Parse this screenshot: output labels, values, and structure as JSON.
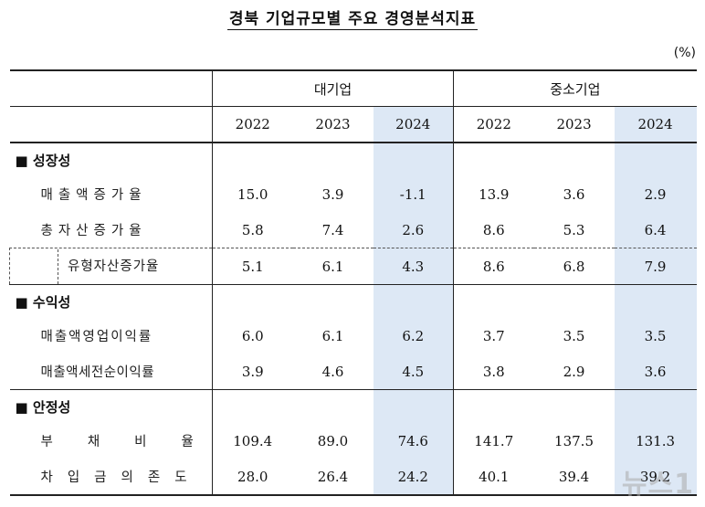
{
  "title": "경북 기업규모별 주요 경영분석지표",
  "unit": "(%)",
  "header": {
    "groups": [
      "대기업",
      "중소기업"
    ],
    "years": [
      "2022",
      "2023",
      "2024",
      "2022",
      "2023",
      "2024"
    ]
  },
  "sections": [
    {
      "label": "■ 성장성",
      "rows": [
        {
          "label": "매출액증가율",
          "values": [
            "15.0",
            "3.9",
            "-1.1",
            "13.9",
            "3.6",
            "2.9"
          ]
        },
        {
          "label": "총자산증가율",
          "values": [
            "5.8",
            "7.4",
            "2.6",
            "8.6",
            "5.3",
            "6.4"
          ]
        },
        {
          "label": "유형자산증가율",
          "values": [
            "5.1",
            "6.1",
            "4.3",
            "8.6",
            "6.8",
            "7.9"
          ]
        }
      ]
    },
    {
      "label": "■ 수익성",
      "rows": [
        {
          "label": "매출액영업이익률",
          "values": [
            "6.0",
            "6.1",
            "6.2",
            "3.7",
            "3.5",
            "3.5"
          ]
        },
        {
          "label": "매출액세전순이익률",
          "values": [
            "3.9",
            "4.6",
            "4.5",
            "3.8",
            "2.9",
            "3.6"
          ]
        }
      ]
    },
    {
      "label": "■ 안정성",
      "rows": [
        {
          "label": "부채비율",
          "values": [
            "109.4",
            "89.0",
            "74.6",
            "141.7",
            "137.5",
            "131.3"
          ]
        },
        {
          "label": "차입금의존도",
          "values": [
            "28.0",
            "26.4",
            "24.2",
            "40.1",
            "39.4",
            "39.2"
          ]
        }
      ]
    }
  ],
  "watermark": "뉴스1",
  "colors": {
    "highlight_column": "#dde8f5"
  }
}
